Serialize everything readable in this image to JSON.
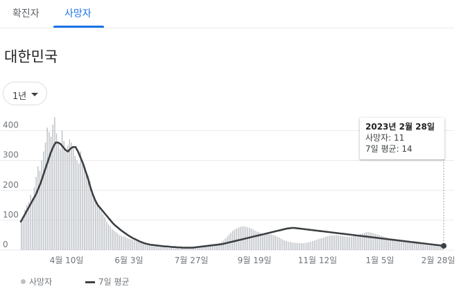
{
  "tabs": [
    {
      "label": "확진자",
      "active": false
    },
    {
      "label": "사망자",
      "active": true
    }
  ],
  "region": "대한민국",
  "range_button": {
    "label": "1년",
    "icon": "caret-down-icon"
  },
  "tooltip": {
    "date": "2023년 2월 28일",
    "deaths_line": "사망자: 11",
    "avg_line": "7일 평균: 14"
  },
  "legend": {
    "deaths": "사망자",
    "avg": "7일 평균"
  },
  "colors": {
    "accent": "#1a73e8",
    "bars": "#bdc1c6",
    "line": "#3c4043"
  },
  "chart_data": {
    "type": "bar",
    "ylim": [
      0,
      450
    ],
    "yticks": [
      "0",
      "100",
      "200",
      "300",
      "400"
    ],
    "xtick_labels": [
      "4월 10일",
      "6월 3일",
      "7월 27일",
      "9월 19일",
      "11월 12일",
      "1월 5일",
      "2월 28일"
    ],
    "series": [
      {
        "name": "사망자",
        "kind": "bar",
        "values": [
          95,
          110,
          135,
          150,
          160,
          185,
          175,
          210,
          245,
          280,
          265,
          300,
          330,
          360,
          410,
          395,
          380,
          420,
          445,
          390,
          360,
          340,
          400,
          365,
          330,
          350,
          370,
          360,
          340,
          315,
          300,
          290,
          330,
          290,
          275,
          260,
          250,
          230,
          200,
          175,
          160,
          155,
          140,
          130,
          120,
          110,
          95,
          85,
          80,
          70,
          65,
          60,
          55,
          50,
          48,
          45,
          45,
          40,
          38,
          36,
          34,
          32,
          30,
          28,
          25,
          22,
          20,
          18,
          16,
          15,
          14,
          13,
          12,
          12,
          10,
          9,
          8,
          8,
          7,
          7,
          7,
          7,
          6,
          6,
          8,
          6,
          5,
          5,
          6,
          5,
          5,
          6,
          7,
          8,
          9,
          10,
          11,
          12,
          13,
          14,
          15,
          16,
          17,
          18,
          19,
          20,
          22,
          24,
          28,
          32,
          38,
          45,
          52,
          58,
          64,
          68,
          72,
          75,
          78,
          80,
          79,
          78,
          76,
          74,
          72,
          69,
          65,
          62,
          60,
          58,
          56,
          55,
          55,
          54,
          53,
          52,
          50,
          48,
          45,
          42,
          38,
          35,
          32,
          30,
          28,
          27,
          26,
          25,
          24,
          24,
          23,
          23,
          23,
          24,
          25,
          26,
          28,
          30,
          32,
          34,
          36,
          38,
          40,
          42,
          44,
          46,
          48,
          49,
          50,
          50,
          50,
          49,
          48,
          47,
          46,
          45,
          44,
          44,
          45,
          46,
          48,
          50,
          52,
          54,
          56,
          58,
          60,
          60,
          59,
          58,
          56,
          54,
          52,
          50,
          48,
          46,
          44,
          42,
          40,
          38,
          36,
          34,
          33,
          32,
          31,
          30,
          29,
          28,
          27,
          26,
          25,
          24,
          23,
          22,
          21,
          20,
          19,
          18,
          17,
          16,
          15,
          15,
          14,
          14,
          13,
          12,
          12,
          11
        ]
      },
      {
        "name": "7일 평균",
        "kind": "line",
        "values": [
          95,
          110,
          125,
          140,
          155,
          170,
          185,
          205,
          225,
          250,
          275,
          300,
          325,
          345,
          360,
          360,
          355,
          345,
          335,
          330,
          340,
          345,
          345,
          330,
          310,
          290,
          265,
          240,
          210,
          185,
          165,
          150,
          140,
          130,
          120,
          110,
          100,
          90,
          82,
          75,
          68,
          62,
          56,
          50,
          45,
          40,
          36,
          32,
          28,
          25,
          22,
          20,
          18,
          17,
          16,
          15,
          14,
          13,
          12,
          12,
          11,
          10,
          10,
          9,
          9,
          8,
          8,
          8,
          8,
          8,
          9,
          10,
          11,
          12,
          13,
          14,
          15,
          16,
          17,
          18,
          19,
          20,
          22,
          24,
          26,
          28,
          30,
          32,
          34,
          36,
          38,
          40,
          42,
          44,
          46,
          48,
          50,
          52,
          54,
          56,
          58,
          60,
          62,
          64,
          66,
          68,
          70,
          72,
          73,
          74,
          74,
          73,
          72,
          71,
          70,
          69,
          68,
          67,
          66,
          65,
          64,
          63,
          62,
          61,
          60,
          59,
          58,
          57,
          56,
          55,
          54,
          53,
          52,
          51,
          50,
          49,
          48,
          47,
          46,
          45,
          44,
          43,
          42,
          41,
          40,
          39,
          38,
          37,
          36,
          35,
          34,
          33,
          32,
          31,
          30,
          29,
          28,
          27,
          26,
          25,
          24,
          23,
          22,
          21,
          20,
          19,
          18,
          17,
          16,
          15,
          14
        ]
      }
    ]
  }
}
